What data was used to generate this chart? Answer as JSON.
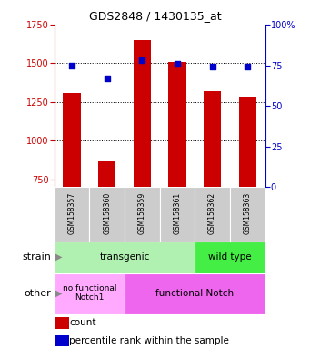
{
  "title": "GDS2848 / 1430135_at",
  "samples": [
    "GSM158357",
    "GSM158360",
    "GSM158359",
    "GSM158361",
    "GSM158362",
    "GSM158363"
  ],
  "counts": [
    1310,
    870,
    1650,
    1510,
    1320,
    1285
  ],
  "percentiles": [
    75,
    67,
    78,
    76,
    74,
    74
  ],
  "ylim_left": [
    700,
    1750
  ],
  "ylim_right": [
    0,
    100
  ],
  "yticks_left": [
    750,
    1000,
    1250,
    1500,
    1750
  ],
  "yticks_right": [
    0,
    25,
    50,
    75,
    100
  ],
  "grid_yticks": [
    1000,
    1250,
    1500
  ],
  "bar_color": "#cc0000",
  "dot_color": "#0000cc",
  "left_axis_color": "#cc0000",
  "right_axis_color": "#0000cc",
  "strain_transgenic_color": "#b0f0b0",
  "strain_wildtype_color": "#44ee44",
  "other_nofunc_color": "#ffaaff",
  "other_func_color": "#ee66ee",
  "sample_box_color": "#cccccc",
  "legend_count_label": "count",
  "legend_percentile_label": "percentile rank within the sample",
  "bar_bottom": 700,
  "bar_width": 0.5
}
